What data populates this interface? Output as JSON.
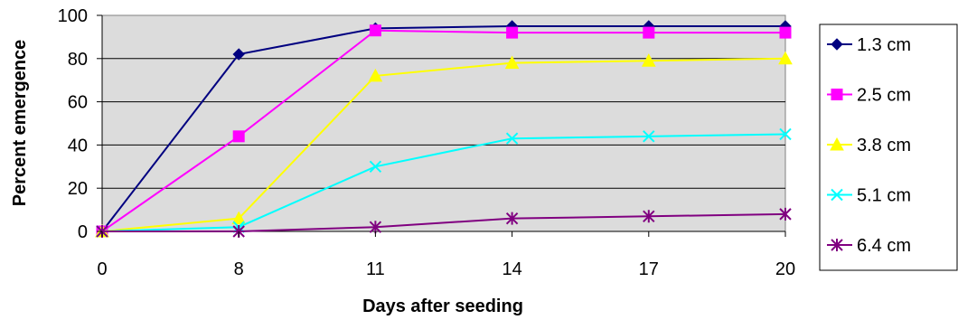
{
  "chart_data": {
    "type": "line",
    "title": "",
    "xlabel": "Days after seeding",
    "ylabel": "Percent emergence",
    "categories": [
      "0",
      "8",
      "11",
      "14",
      "17",
      "20"
    ],
    "ylim": [
      0,
      100
    ],
    "yticks": [
      "0",
      "20",
      "40",
      "60",
      "80",
      "100"
    ],
    "grid": true,
    "legend_position": "right",
    "plot_background": "#dcdcdc",
    "series": [
      {
        "name": "1.3 cm",
        "values": [
          0,
          82,
          94,
          95,
          95,
          95
        ],
        "color": "#000080",
        "marker": "diamond"
      },
      {
        "name": "2.5 cm",
        "values": [
          0,
          44,
          93,
          92,
          92,
          92
        ],
        "color": "#ff00ff",
        "marker": "square"
      },
      {
        "name": "3.8 cm",
        "values": [
          0,
          6,
          72,
          78,
          79,
          80
        ],
        "color": "#ffff00",
        "marker": "triangle"
      },
      {
        "name": "5.1 cm",
        "values": [
          0,
          2,
          30,
          43,
          44,
          45
        ],
        "color": "#00ffff",
        "marker": "x"
      },
      {
        "name": "6.4 cm",
        "values": [
          0,
          0,
          2,
          6,
          7,
          8
        ],
        "color": "#800080",
        "marker": "star"
      }
    ]
  }
}
